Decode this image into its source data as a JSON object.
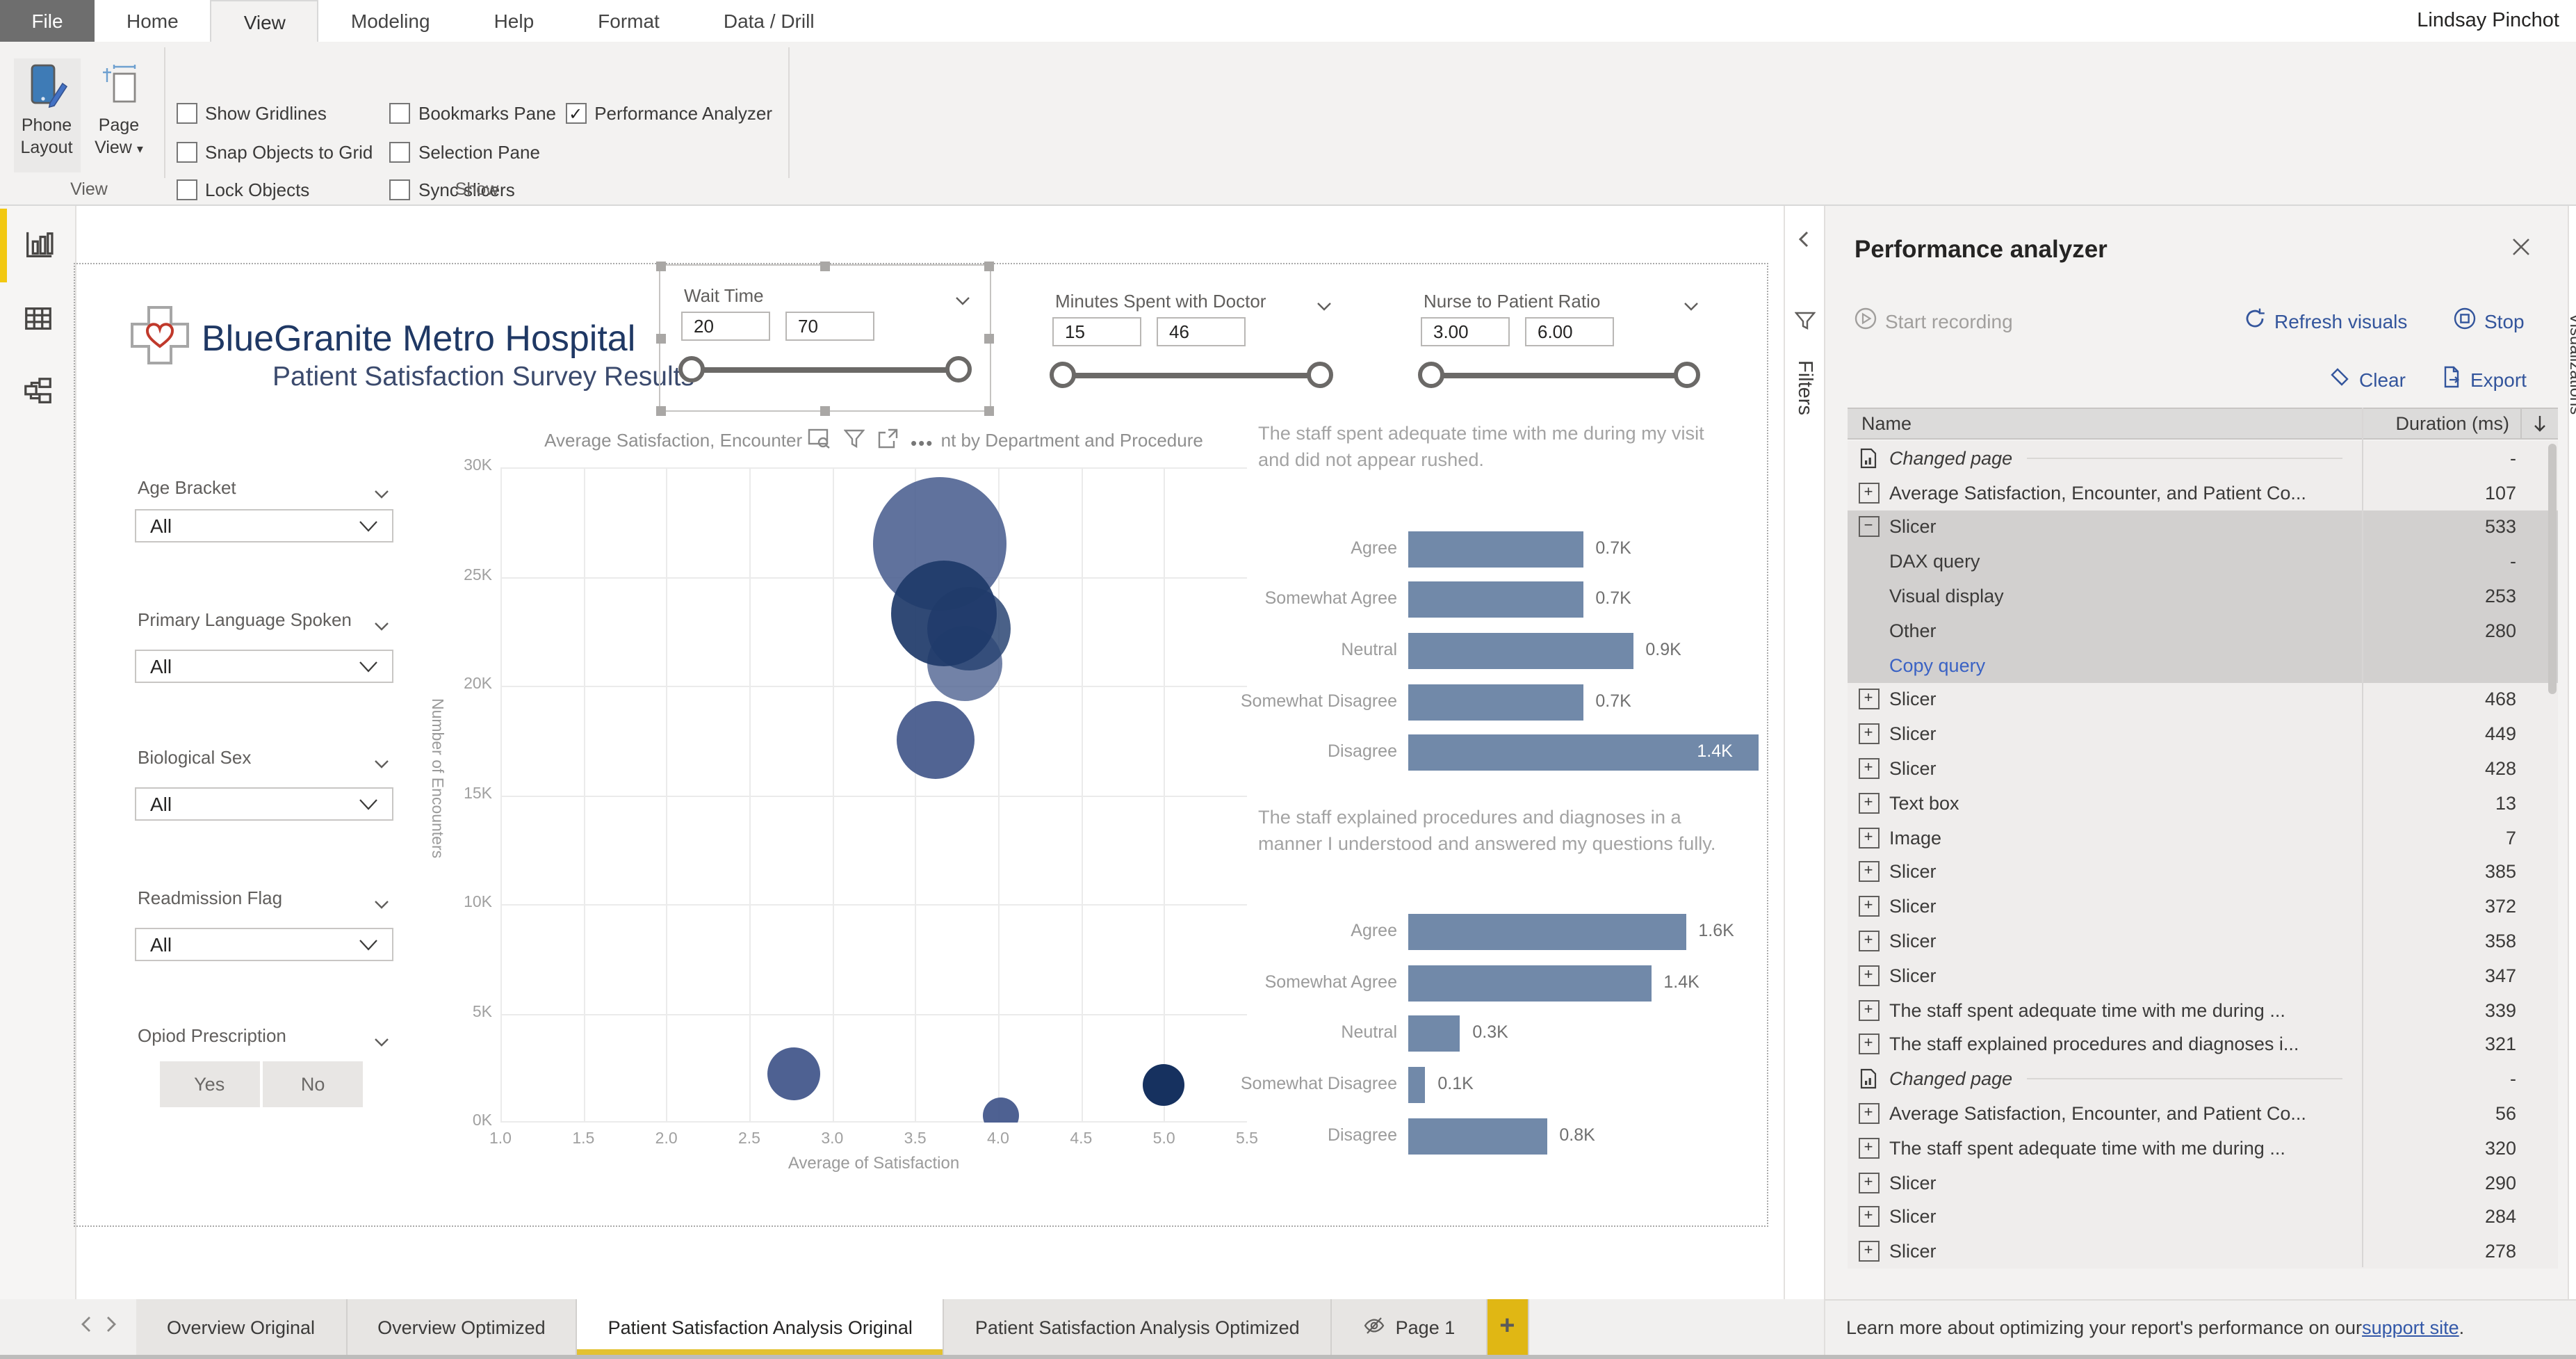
{
  "window": {
    "user": "Lindsay Pinchot"
  },
  "ribbon": {
    "file_tab": "File",
    "tabs": [
      {
        "label": "Home",
        "active": false
      },
      {
        "label": "View",
        "active": true
      },
      {
        "label": "Modeling",
        "active": false
      },
      {
        "label": "Help",
        "active": false
      },
      {
        "label": "Format",
        "active": false
      },
      {
        "label": "Data / Drill",
        "active": false
      }
    ],
    "buttons": [
      {
        "label": "Phone Layout",
        "icon": "phone-layout-icon",
        "pressed": true
      },
      {
        "label": "Page View",
        "icon": "page-view-icon",
        "dropdown": true
      }
    ],
    "checkboxes": [
      {
        "label": "Show Gridlines",
        "checked": false,
        "col": 0,
        "row": 0
      },
      {
        "label": "Snap Objects to Grid",
        "checked": false,
        "col": 0,
        "row": 1
      },
      {
        "label": "Lock Objects",
        "checked": false,
        "col": 0,
        "row": 2
      },
      {
        "label": "Bookmarks Pane",
        "checked": false,
        "col": 1,
        "row": 0
      },
      {
        "label": "Selection Pane",
        "checked": false,
        "col": 1,
        "row": 1
      },
      {
        "label": "Sync slicers",
        "checked": false,
        "col": 1,
        "row": 2
      },
      {
        "label": "Performance Analyzer",
        "checked": true,
        "col": 2,
        "row": 0
      }
    ],
    "groups": [
      "View",
      "Show"
    ]
  },
  "sidebar": {
    "items": [
      {
        "icon": "report-view-icon",
        "active": true
      },
      {
        "icon": "data-view-icon",
        "active": false
      },
      {
        "icon": "model-view-icon",
        "active": false
      }
    ]
  },
  "report": {
    "title": "BlueGranite Metro Hospital",
    "subtitle": "Patient Satisfaction Survey Results",
    "logo": "hospital-cross-heart-icon",
    "slicers": [
      {
        "name": "Wait Time",
        "min": "20",
        "max": "70",
        "selected": true
      },
      {
        "name": "Minutes Spent with Doctor",
        "min": "15",
        "max": "46",
        "selected": false
      },
      {
        "name": "Nurse to Patient Ratio",
        "min": "3.00",
        "max": "6.00",
        "selected": false
      }
    ],
    "dropdown_filters": [
      {
        "label": "Age Bracket",
        "value": "All"
      },
      {
        "label": "Primary Language Spoken",
        "value": "All"
      },
      {
        "label": "Biological Sex",
        "value": "All"
      },
      {
        "label": "Readmission Flag",
        "value": "All"
      }
    ],
    "button_filter": {
      "label": "Opiod Prescription",
      "options": [
        "Yes",
        "No"
      ]
    }
  },
  "chart_data": [
    {
      "type": "scatter",
      "title": "Average Satisfaction, Encounter, and Patient Count by Department and Procedure",
      "xlabel": "Average of Satisfaction",
      "ylabel": "Number of Encounters",
      "xlim": [
        1.0,
        5.5
      ],
      "ylim_k": [
        0,
        30
      ],
      "xticks": [
        "1.0",
        "1.5",
        "2.0",
        "2.5",
        "3.0",
        "3.5",
        "4.0",
        "4.5",
        "5.0",
        "5.5"
      ],
      "yticks": [
        "0K",
        "5K",
        "10K",
        "15K",
        "20K",
        "25K",
        "30K"
      ],
      "grid": true,
      "bubbles": [
        {
          "x": 3.65,
          "y_k": 26.5,
          "r": 48,
          "color": "#4a5e90",
          "opacity": 0.88
        },
        {
          "x": 3.8,
          "y_k": 21.0,
          "r": 27,
          "color": "#4f6391",
          "opacity": 0.8
        },
        {
          "x": 3.82,
          "y_k": 22.6,
          "r": 30,
          "color": "#2a4573",
          "opacity": 0.85
        },
        {
          "x": 3.67,
          "y_k": 23.3,
          "r": 38,
          "color": "#1e3a69",
          "opacity": 0.92
        },
        {
          "x": 3.62,
          "y_k": 17.5,
          "r": 28,
          "color": "#42578a",
          "opacity": 0.92
        },
        {
          "x": 2.77,
          "y_k": 2.2,
          "r": 19,
          "color": "#44598c",
          "opacity": 0.95
        },
        {
          "x": 4.02,
          "y_k": 0.3,
          "r": 13,
          "color": "#44598c",
          "opacity": 0.95
        },
        {
          "x": 5.0,
          "y_k": 1.7,
          "r": 15,
          "color": "#16315f",
          "opacity": 1
        }
      ]
    },
    {
      "type": "bar",
      "title_lines": [
        "The staff spent adequate time with me during my visit",
        "and did not appear rushed."
      ],
      "categories": [
        "Agree",
        "Somewhat Agree",
        "Neutral",
        "Somewhat Disagree",
        "Disagree"
      ],
      "values_k": [
        0.7,
        0.7,
        0.9,
        0.7,
        1.4
      ],
      "labels": [
        "0.7K",
        "0.7K",
        "0.9K",
        "0.7K",
        "1.4K"
      ],
      "bar_color": "#7189a9"
    },
    {
      "type": "bar",
      "title_lines": [
        "The staff explained procedures and diagnoses in a",
        "manner I understood and answered my questions fully."
      ],
      "categories": [
        "Agree",
        "Somewhat Agree",
        "Neutral",
        "Somewhat Disagree",
        "Disagree"
      ],
      "values_k": [
        1.6,
        1.4,
        0.3,
        0.1,
        0.8
      ],
      "labels": [
        "1.6K",
        "1.4K",
        "0.3K",
        "0.1K",
        "0.8K"
      ],
      "bar_color": "#7189a9"
    }
  ],
  "filters_pane": {
    "label": "Filters",
    "collapse_icon": "chevron-left-icon",
    "funnel_icon": "funnel-icon"
  },
  "performance": {
    "title": "Performance analyzer",
    "start_label": "Start recording",
    "refresh_label": "Refresh visuals",
    "stop_label": "Stop",
    "clear_label": "Clear",
    "export_label": "Export",
    "columns": {
      "name": "Name",
      "duration": "Duration (ms)"
    },
    "rows": [
      {
        "type": "page",
        "name": "Changed page",
        "duration": "-"
      },
      {
        "type": "visual",
        "name": "Average Satisfaction, Encounter, and Patient Co...",
        "duration": "107"
      },
      {
        "type": "visual",
        "name": "Slicer",
        "duration": "533",
        "expanded": true,
        "selected": true
      },
      {
        "type": "detail",
        "name": "DAX query",
        "duration": "-",
        "selected": true
      },
      {
        "type": "detail",
        "name": "Visual display",
        "duration": "253",
        "selected": true
      },
      {
        "type": "detail",
        "name": "Other",
        "duration": "280",
        "selected": true
      },
      {
        "type": "link",
        "name": "Copy query",
        "duration": "",
        "selected": true
      },
      {
        "type": "visual",
        "name": "Slicer",
        "duration": "468"
      },
      {
        "type": "visual",
        "name": "Slicer",
        "duration": "449"
      },
      {
        "type": "visual",
        "name": "Slicer",
        "duration": "428"
      },
      {
        "type": "visual",
        "name": "Text box",
        "duration": "13"
      },
      {
        "type": "visual",
        "name": "Image",
        "duration": "7"
      },
      {
        "type": "visual",
        "name": "Slicer",
        "duration": "385"
      },
      {
        "type": "visual",
        "name": "Slicer",
        "duration": "372"
      },
      {
        "type": "visual",
        "name": "Slicer",
        "duration": "358"
      },
      {
        "type": "visual",
        "name": "Slicer",
        "duration": "347"
      },
      {
        "type": "visual",
        "name": "The staff spent adequate time with me during ...",
        "duration": "339"
      },
      {
        "type": "visual",
        "name": "The staff explained procedures and diagnoses i...",
        "duration": "321"
      },
      {
        "type": "page",
        "name": "Changed page",
        "duration": "-"
      },
      {
        "type": "visual",
        "name": "Average Satisfaction, Encounter, and Patient Co...",
        "duration": "56"
      },
      {
        "type": "visual",
        "name": "The staff spent adequate time with me during ...",
        "duration": "320"
      },
      {
        "type": "visual",
        "name": "Slicer",
        "duration": "290"
      },
      {
        "type": "visual",
        "name": "Slicer",
        "duration": "284"
      },
      {
        "type": "visual",
        "name": "Slicer",
        "duration": "278"
      }
    ],
    "footer_text": "Learn more about optimizing your report's performance on our ",
    "footer_link": "support site",
    "footer_suffix": "."
  },
  "pages": {
    "tabs": [
      {
        "label": "Overview Original",
        "active": false,
        "hidden": false
      },
      {
        "label": "Overview Optimized",
        "active": false,
        "hidden": false
      },
      {
        "label": "Patient Satisfaction Analysis Original",
        "active": true,
        "hidden": false
      },
      {
        "label": "Patient Satisfaction Analysis Optimized",
        "active": false,
        "hidden": false
      },
      {
        "label": "Page 1",
        "active": false,
        "hidden": true
      }
    ],
    "add_label": "+"
  },
  "colors": {
    "accent_yellow": "#f2c811",
    "navy_title": "#1f3864",
    "bar_blue": "#7189a9",
    "link_blue": "#33559c",
    "copy_query_blue": "#3a62c4"
  }
}
